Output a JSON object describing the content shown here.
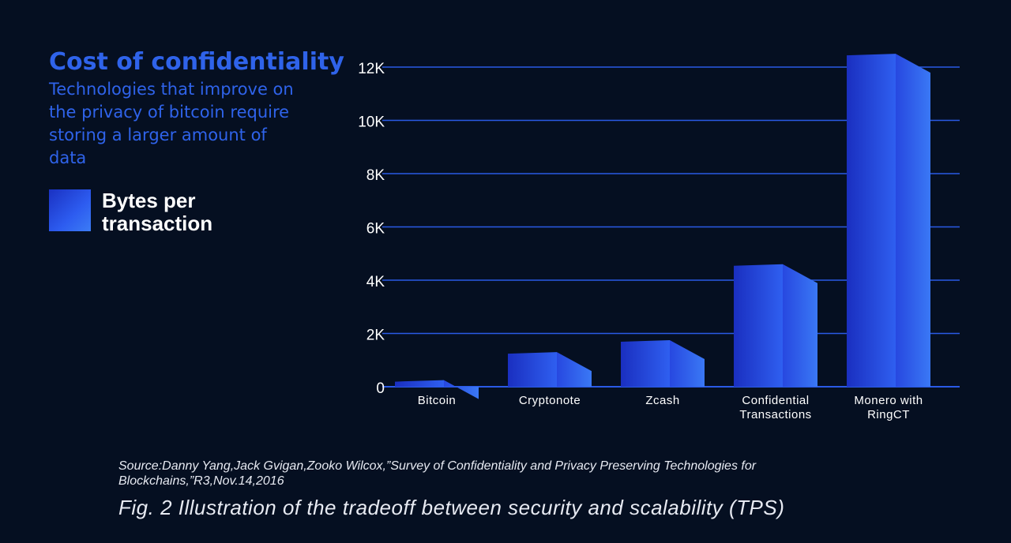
{
  "header": {
    "title": "Cost of confidentiality",
    "subtitle": "Technologies that improve on the privacy of bitcoin require storing a larger amount of data"
  },
  "legend": {
    "label": "Bytes per transaction"
  },
  "chart_data": {
    "type": "bar",
    "categories": [
      "Bitcoin",
      "Cryptonote",
      "Zcash",
      "Confidential Transactions",
      "Monero with RingCT"
    ],
    "category_lines": [
      [
        "Bitcoin"
      ],
      [
        "Cryptonote"
      ],
      [
        "Zcash"
      ],
      [
        "Confidential",
        "Transactions"
      ],
      [
        "Monero with",
        "RingCT"
      ]
    ],
    "series": [
      {
        "name": "Bytes per transaction",
        "values": [
          250,
          1300,
          1750,
          4600,
          12500
        ]
      }
    ],
    "title": "Cost of confidentiality",
    "subtitle": "Technologies that improve on the privacy of bitcoin require storing a larger amount of data",
    "xlabel": "",
    "ylabel": "",
    "ylim": [
      0,
      12000
    ],
    "yticks": [
      0,
      2000,
      4000,
      6000,
      8000,
      10000,
      12000
    ],
    "ytick_labels": [
      "0",
      "2K",
      "4K",
      "6K",
      "8K",
      "10K",
      "12K"
    ],
    "grid": true,
    "legend_position": "left",
    "colors": {
      "bar_front_left": "#1a2fc0",
      "bar_front_right": "#2f5ff0",
      "bar_side_left": "#2748e0",
      "bar_side_right": "#3a78f5",
      "gridline": "#2a5ae6",
      "axis_text": "#ffffff"
    }
  },
  "footer": {
    "source": "Source:Danny Yang,Jack Gvigan,Zooko Wilcox,”Survey of Confidentiality and Privacy Preserving Technologies for Blockchains,”R3,Nov.14,2016",
    "caption": "Fig. 2 Illustration of the tradeoff between security and scalability (TPS)"
  }
}
